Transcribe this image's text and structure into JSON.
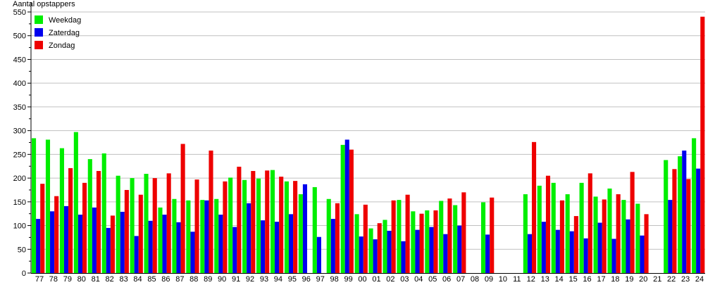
{
  "chart_data": {
    "type": "bar",
    "ylabel": "Aantal opstappers",
    "xlabel": "",
    "ylim": [
      0,
      550
    ],
    "yticks": [
      0,
      50,
      100,
      150,
      200,
      250,
      300,
      350,
      400,
      450,
      500,
      550
    ],
    "grid": true,
    "legend": "top-left",
    "categories": [
      "77",
      "78",
      "79",
      "80",
      "81",
      "82",
      "83",
      "84",
      "85",
      "86",
      "87",
      "88",
      "89",
      "90",
      "91",
      "92",
      "93",
      "94",
      "95",
      "96",
      "97",
      "98",
      "99",
      "00",
      "01",
      "02",
      "03",
      "04",
      "05",
      "06",
      "07",
      "08",
      "09",
      "10",
      "11",
      "12",
      "13",
      "14",
      "15",
      "16",
      "17",
      "18",
      "19",
      "20",
      "21",
      "22",
      "23",
      "24"
    ],
    "series": [
      {
        "name": "Weekdag",
        "color": "#00ee00",
        "values": [
          284,
          281,
          263,
          297,
          240,
          252,
          205,
          200,
          209,
          138,
          156,
          153,
          154,
          156,
          201,
          196,
          199,
          217,
          193,
          166,
          181,
          156,
          270,
          124,
          94,
          112,
          154,
          130,
          132,
          152,
          143,
          null,
          149,
          null,
          null,
          166,
          184,
          190,
          166,
          190,
          161,
          178,
          154,
          146,
          null,
          238,
          246,
          284
        ]
      },
      {
        "name": "Zaterdag",
        "color": "#0000ee",
        "values": [
          114,
          130,
          141,
          123,
          138,
          95,
          129,
          78,
          110,
          123,
          107,
          87,
          153,
          123,
          97,
          147,
          111,
          108,
          124,
          187,
          76,
          114,
          281,
          77,
          71,
          89,
          67,
          91,
          97,
          82,
          100,
          null,
          81,
          null,
          null,
          82,
          108,
          91,
          88,
          73,
          106,
          72,
          113,
          79,
          null,
          154,
          258,
          220
        ]
      },
      {
        "name": "Zondag",
        "color": "#ee0000",
        "values": [
          188,
          162,
          221,
          190,
          215,
          121,
          175,
          165,
          200,
          210,
          272,
          197,
          258,
          193,
          224,
          215,
          216,
          203,
          194,
          null,
          null,
          147,
          260,
          144,
          105,
          153,
          165,
          125,
          132,
          157,
          170,
          null,
          159,
          null,
          null,
          276,
          205,
          153,
          120,
          210,
          155,
          166,
          213,
          124,
          null,
          219,
          198,
          540
        ]
      }
    ]
  }
}
